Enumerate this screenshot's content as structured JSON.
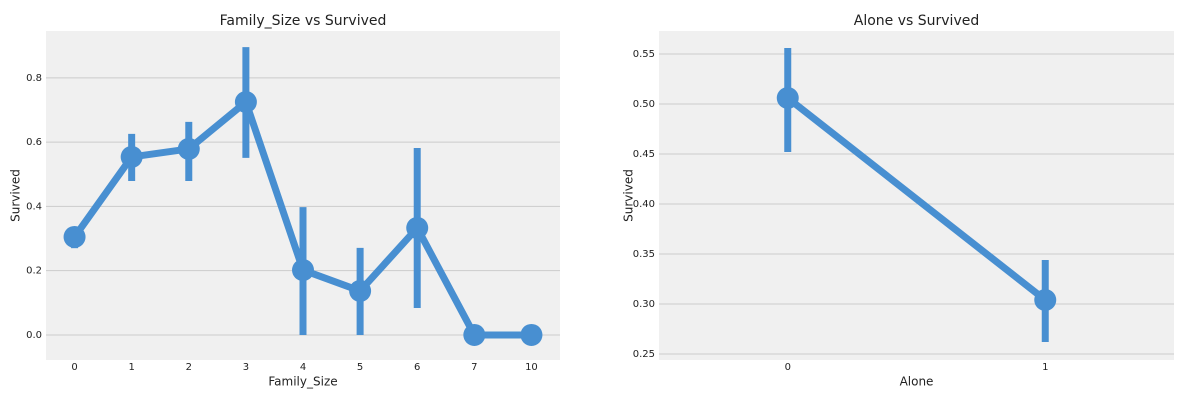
{
  "chart_data": [
    {
      "type": "point",
      "title": "Family_Size vs Survived",
      "xlabel": "Family_Size",
      "ylabel": "Survived",
      "categories": [
        "0",
        "1",
        "2",
        "3",
        "4",
        "5",
        "6",
        "7",
        "10"
      ],
      "values": [
        0.305,
        0.554,
        0.579,
        0.725,
        0.202,
        0.137,
        0.333,
        0,
        0
      ],
      "ci_low": [
        0.27,
        0.479,
        0.479,
        0.551,
        0,
        0,
        0.084,
        0,
        0
      ],
      "ci_high": [
        0.333,
        0.626,
        0.663,
        0.896,
        0.398,
        0.271,
        0.582,
        0,
        0
      ],
      "color": "#488fd1",
      "ylim": [
        -0.078,
        0.946
      ],
      "yticks": [
        {
          "value": 0,
          "label": "0.0"
        },
        0.2,
        0.4,
        0.6,
        0.8
      ],
      "grid": true
    },
    {
      "type": "point",
      "title": "Alone vs Survived",
      "xlabel": "Alone",
      "ylabel": "Survived",
      "categories": [
        "0",
        "1"
      ],
      "values": [
        0.506,
        0.304
      ],
      "ci_low": [
        0.452,
        0.262
      ],
      "ci_high": [
        0.556,
        0.344
      ],
      "color": "#488fd1",
      "ylim": [
        0.244,
        0.573
      ],
      "yticks": [
        0.25,
        {
          "value": 0.3,
          "label": "0.30"
        },
        0.35,
        {
          "value": 0.4,
          "label": "0.40"
        },
        0.45,
        {
          "value": 0.5,
          "label": "0.50"
        },
        0.55
      ],
      "grid": true
    }
  ]
}
